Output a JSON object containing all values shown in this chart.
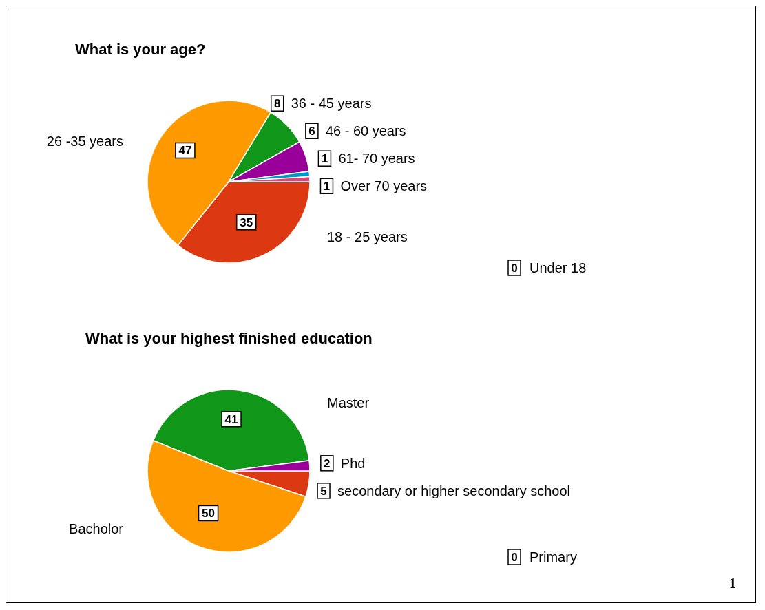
{
  "chart_data": [
    {
      "type": "pie",
      "title": "What is your age?",
      "categories": [
        "Under 18",
        "18 - 25 years",
        "26 -35 years",
        "36 - 45 years",
        "46 - 60 years",
        "61- 70 years",
        "Over 70 years"
      ],
      "values": [
        0,
        35,
        47,
        8,
        6,
        1,
        1
      ],
      "colors": [
        "#3366cc",
        "#dc3912",
        "#ff9900",
        "#109618",
        "#990099",
        "#0099c6",
        "#dd4477"
      ],
      "value_labels": [
        "0",
        "35",
        "47",
        "8",
        "6",
        "1",
        "1"
      ]
    },
    {
      "type": "pie",
      "title": "What is your highest finished education",
      "categories": [
        "Primary",
        "secondary or higher secondary school",
        "Bacholor",
        "Master",
        "Phd"
      ],
      "values": [
        0,
        5,
        50,
        41,
        2
      ],
      "colors": [
        "#3366cc",
        "#dc3912",
        "#ff9900",
        "#109618",
        "#990099"
      ],
      "value_labels": [
        "0",
        "5",
        "50",
        "41",
        "2"
      ],
      "annotations": [
        "1"
      ]
    }
  ]
}
